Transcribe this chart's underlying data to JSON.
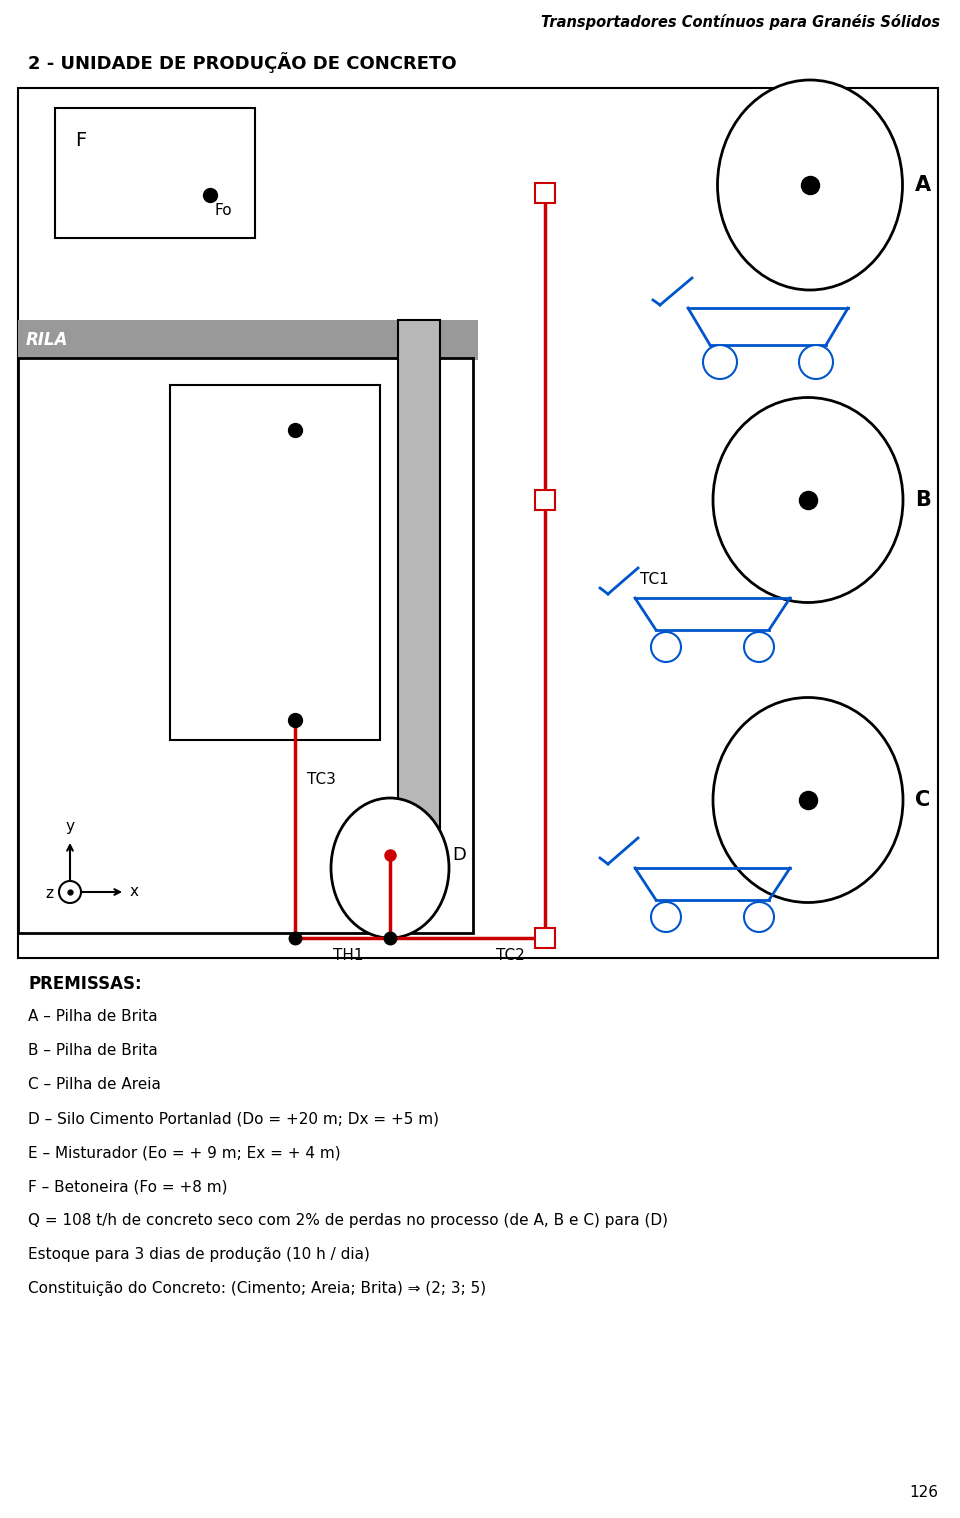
{
  "page_title": "Transportadores Contínuos para Granéis Sólidos",
  "section_title": "2 - UNIDADE DE PRODUÇÃO DE CONCRETO",
  "page_number": "126",
  "premissas_title": "PREMISSAS:",
  "premissas_lines": [
    "A – Pilha de Brita",
    "B – Pilha de Brita",
    "C – Pilha de Areia",
    "D – Silo Cimento Portanlad (Do = +20 m; Dx = +5 m)",
    "E – Misturador (Eo = + 9 m; Ex = + 4 m)",
    "F – Betoneira (Fo = +8 m)",
    "Q = 108 t/h de concreto seco com 2% de perdas no processo (de A, B e C) para (D)",
    "Estoque para 3 dias de produção (10 h / dia)",
    "Constituição do Concreto: (Cimento; Areia; Brita) ⇒ (2; 3; 5)"
  ],
  "bg_color": "#ffffff",
  "red_color": "#cc0000",
  "blue_color": "#0055cc",
  "gray_color": "#aaaaaa"
}
